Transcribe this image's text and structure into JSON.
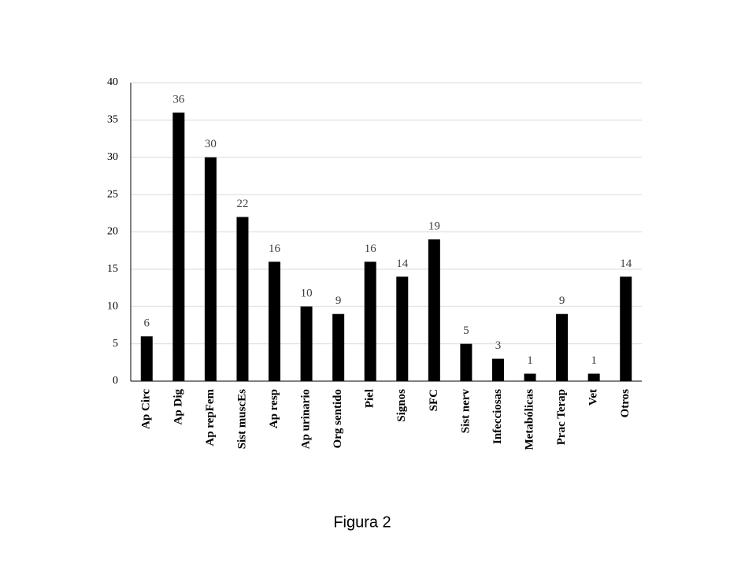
{
  "chart_data": {
    "type": "bar",
    "categories": [
      "Ap Circ",
      "Ap Dig",
      "Ap repFem",
      "Sist muscEs",
      "Ap resp",
      "Ap urinario",
      "Org sentido",
      "Piel",
      "Signos",
      "SFC",
      "Sist nerv",
      "Infecciosas",
      "Metabólicas",
      "Prac Terap",
      "Vet",
      "Otros"
    ],
    "values": [
      6,
      36,
      30,
      22,
      16,
      10,
      9,
      16,
      14,
      19,
      5,
      3,
      1,
      9,
      1,
      14
    ],
    "color": "#000000",
    "ylim": [
      0,
      40
    ],
    "yticks": [
      0,
      5,
      10,
      15,
      20,
      25,
      30,
      35,
      40
    ],
    "grid": true,
    "caption": "Figura 2"
  }
}
